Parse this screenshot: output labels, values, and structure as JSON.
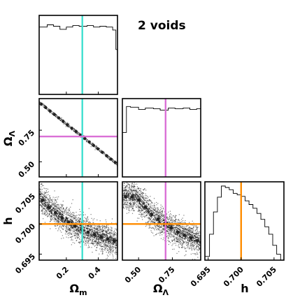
{
  "title": "2 voids",
  "colors": {
    "omega_m_truth": "#40e0d0",
    "omega_lambda_truth": "#da70d6",
    "h_truth": "#ff8c00",
    "ink": "#000000"
  },
  "chart_data": [
    {
      "type": "histogram",
      "panel": "omega_m-marginal",
      "xlim": [
        0.03,
        0.52
      ],
      "bins_x": [
        0.03,
        0.08,
        0.12,
        0.16,
        0.2,
        0.24,
        0.28,
        0.33,
        0.37,
        0.41,
        0.45,
        0.49,
        0.51,
        0.52
      ],
      "values": [
        0.9,
        0.93,
        0.91,
        0.87,
        0.9,
        0.92,
        0.91,
        0.92,
        0.9,
        0.91,
        0.9,
        0.86,
        0.6
      ],
      "truth": 0.3
    },
    {
      "type": "scatter",
      "panel": "omega_m-omega_lambda",
      "xlim": [
        0.03,
        0.52
      ],
      "ylim": [
        0.38,
        1.0
      ],
      "relation": "omega_lambda = 1 - omega_m",
      "truth": {
        "x": 0.3,
        "y": 0.7
      }
    },
    {
      "type": "histogram",
      "panel": "omega_lambda-marginal",
      "xlim": [
        0.38,
        0.96
      ],
      "bins_x": [
        0.38,
        0.41,
        0.44,
        0.5,
        0.55,
        0.61,
        0.66,
        0.72,
        0.77,
        0.83,
        0.88,
        0.93,
        0.96
      ],
      "values": [
        0.6,
        0.95,
        0.94,
        0.91,
        0.93,
        0.92,
        0.9,
        0.93,
        0.92,
        0.93,
        0.91,
        0.92
      ],
      "truth": 0.7,
      "xticks": [
        "0.50",
        "0.75"
      ]
    },
    {
      "type": "scatter",
      "panel": "omega_m-h",
      "xlim": [
        0.03,
        0.52
      ],
      "ylim": [
        0.694,
        0.707
      ],
      "trend": [
        [
          0.03,
          0.7045
        ],
        [
          0.1,
          0.7025
        ],
        [
          0.2,
          0.7005
        ],
        [
          0.3,
          0.699
        ],
        [
          0.4,
          0.698
        ],
        [
          0.52,
          0.697
        ]
      ],
      "truth": {
        "x": 0.3,
        "y": 0.7
      }
    },
    {
      "type": "scatter",
      "panel": "omega_lambda-h",
      "xlim": [
        0.38,
        0.96
      ],
      "ylim": [
        0.694,
        0.707
      ],
      "trend": [
        [
          0.48,
          0.7045
        ],
        [
          0.6,
          0.7015
        ],
        [
          0.7,
          0.7
        ],
        [
          0.8,
          0.6985
        ],
        [
          0.96,
          0.697
        ]
      ],
      "truth": {
        "x": 0.7,
        "y": 0.7
      }
    },
    {
      "type": "histogram",
      "panel": "h-marginal",
      "xlim": [
        0.6945,
        0.7065
      ],
      "bins_x": [
        0.6945,
        0.6952,
        0.6958,
        0.6964,
        0.697,
        0.6976,
        0.6982,
        0.6988,
        0.6994,
        0.7,
        0.7006,
        0.7012,
        0.7018,
        0.7024,
        0.703,
        0.7036,
        0.7042,
        0.7048,
        0.7054,
        0.706
      ],
      "values": [
        0.05,
        0.35,
        0.65,
        0.85,
        1.0,
        0.98,
        0.95,
        0.9,
        0.88,
        0.86,
        0.8,
        0.75,
        0.7,
        0.63,
        0.55,
        0.45,
        0.35,
        0.2,
        0.08
      ],
      "truth": 0.7
    }
  ],
  "axes": {
    "omega_m": {
      "label": "Ωm",
      "label_main": "Ω",
      "label_sub": "m",
      "ticks": [
        0.2,
        0.4
      ],
      "tick_labels": [
        "0.2",
        "0.4"
      ]
    },
    "omega_lambda": {
      "label": "ΩΛ",
      "label_main": "Ω",
      "label_sub": "Λ",
      "ticks": [
        0.5,
        0.75
      ],
      "tick_labels": [
        "0.50",
        "0.75"
      ]
    },
    "h": {
      "label": "h",
      "ticks": [
        0.695,
        0.7,
        0.705
      ],
      "tick_labels": [
        "0.695",
        "0.700",
        "0.705"
      ]
    }
  }
}
